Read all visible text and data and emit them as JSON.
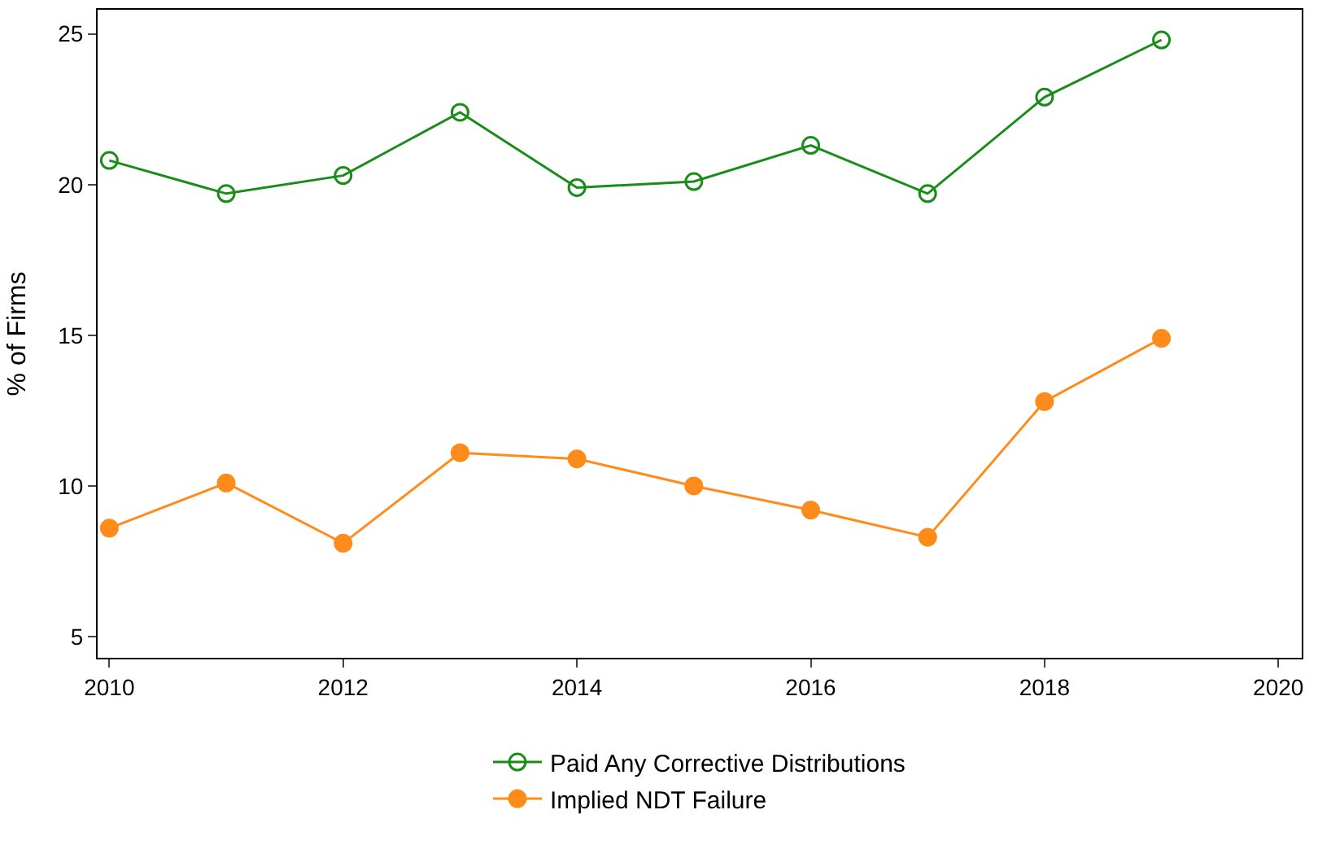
{
  "chart_data": {
    "type": "line",
    "ylabel": "% of Firms",
    "x": [
      2010,
      2011,
      2012,
      2013,
      2014,
      2015,
      2016,
      2017,
      2018,
      2019
    ],
    "series": [
      {
        "name": "Paid Any Corrective Distributions",
        "color": "#1a8c1a",
        "values": [
          20.8,
          19.7,
          20.3,
          22.4,
          19.9,
          20.1,
          21.3,
          19.7,
          22.9,
          24.8
        ]
      },
      {
        "name": "Implied NDT Failure",
        "color": "#ff8c1a",
        "values": [
          8.6,
          10.1,
          8.1,
          11.1,
          10.9,
          10.0,
          9.2,
          8.3,
          12.8,
          14.9
        ]
      }
    ],
    "xlim": [
      2009.9,
      2020.2
    ],
    "xticks": [
      2010,
      2012,
      2014,
      2016,
      2018,
      2020
    ],
    "ylim": [
      4.3,
      25.8
    ],
    "yticks": [
      5,
      10,
      15,
      20,
      25
    ],
    "legend": "bottom",
    "marker": "circle",
    "line_style": "solid"
  }
}
